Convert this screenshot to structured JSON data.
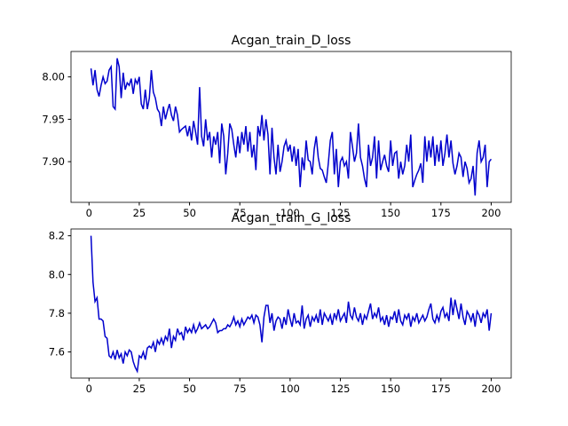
{
  "chart_data": [
    {
      "type": "line",
      "title": "Acgan_train_D_loss",
      "color": "#0000cd",
      "xlim": [
        -8.95,
        209.95
      ],
      "ylim": [
        7.852,
        8.03
      ],
      "xticks": [
        0,
        25,
        50,
        75,
        100,
        125,
        150,
        175,
        200
      ],
      "yticks": [
        {
          "value": 7.9,
          "label": "7.90"
        },
        7.95,
        {
          "value": 8.0,
          "label": "8.00"
        }
      ],
      "x": [
        1,
        2,
        3,
        4,
        5,
        6,
        7,
        8,
        9,
        10,
        11,
        12,
        13,
        14,
        15,
        16,
        17,
        18,
        19,
        20,
        21,
        22,
        23,
        24,
        25,
        26,
        27,
        28,
        29,
        30,
        31,
        32,
        33,
        34,
        35,
        36,
        37,
        38,
        39,
        40,
        41,
        42,
        43,
        44,
        45,
        46,
        47,
        48,
        49,
        50,
        51,
        52,
        53,
        54,
        55,
        56,
        57,
        58,
        59,
        60,
        61,
        62,
        63,
        64,
        65,
        66,
        67,
        68,
        69,
        70,
        71,
        72,
        73,
        74,
        75,
        76,
        77,
        78,
        79,
        80,
        81,
        82,
        83,
        84,
        85,
        86,
        87,
        88,
        89,
        90,
        91,
        92,
        93,
        94,
        95,
        96,
        97,
        98,
        99,
        100,
        101,
        102,
        103,
        104,
        105,
        106,
        107,
        108,
        109,
        110,
        111,
        112,
        113,
        114,
        115,
        116,
        117,
        118,
        119,
        120,
        121,
        122,
        123,
        124,
        125,
        126,
        127,
        128,
        129,
        130,
        131,
        132,
        133,
        134,
        135,
        136,
        137,
        138,
        139,
        140,
        141,
        142,
        143,
        144,
        145,
        146,
        147,
        148,
        149,
        150,
        151,
        152,
        153,
        154,
        155,
        156,
        157,
        158,
        159,
        160,
        161,
        162,
        163,
        164,
        165,
        166,
        167,
        168,
        169,
        170,
        171,
        172,
        173,
        174,
        175,
        176,
        177,
        178,
        179,
        180,
        181,
        182,
        183,
        184,
        185,
        186,
        187,
        188,
        189,
        190,
        191,
        192,
        193,
        194,
        195,
        196,
        197,
        198,
        199,
        200
      ],
      "values": [
        8.01,
        7.99,
        8.008,
        7.985,
        7.977,
        7.99,
        8.0,
        7.992,
        7.995,
        8.008,
        8.012,
        7.965,
        7.962,
        8.022,
        8.012,
        7.975,
        8.005,
        7.985,
        7.993,
        7.99,
        7.998,
        7.98,
        7.997,
        7.992,
        8.0,
        7.968,
        7.962,
        7.985,
        7.962,
        7.975,
        8.008,
        7.982,
        7.975,
        7.962,
        7.958,
        7.942,
        7.965,
        7.95,
        7.96,
        7.968,
        7.955,
        7.948,
        7.965,
        7.955,
        7.935,
        7.938,
        7.94,
        7.942,
        7.93,
        7.942,
        7.925,
        7.948,
        7.935,
        7.92,
        7.988,
        7.93,
        7.918,
        7.95,
        7.925,
        7.935,
        7.905,
        7.93,
        7.92,
        7.935,
        7.898,
        7.945,
        7.93,
        7.885,
        7.91,
        7.945,
        7.938,
        7.92,
        7.905,
        7.93,
        7.91,
        7.935,
        7.92,
        7.942,
        7.912,
        7.935,
        7.905,
        7.92,
        7.89,
        7.942,
        7.93,
        7.955,
        7.925,
        7.95,
        7.932,
        7.885,
        7.94,
        7.905,
        7.885,
        7.92,
        7.888,
        7.9,
        7.918,
        7.925,
        7.912,
        7.92,
        7.9,
        7.918,
        7.895,
        7.915,
        7.87,
        7.905,
        7.89,
        7.925,
        7.902,
        7.9,
        7.885,
        7.915,
        7.93,
        7.905,
        7.892,
        7.89,
        7.882,
        7.875,
        7.898,
        7.925,
        7.935,
        7.885,
        7.915,
        7.87,
        7.9,
        7.905,
        7.895,
        7.9,
        7.88,
        7.935,
        7.918,
        7.9,
        7.91,
        7.945,
        7.905,
        7.895,
        7.88,
        7.87,
        7.92,
        7.895,
        7.905,
        7.93,
        7.88,
        7.925,
        7.89,
        7.9,
        7.908,
        7.895,
        7.888,
        7.925,
        7.895,
        7.91,
        7.912,
        7.88,
        7.9,
        7.885,
        7.895,
        7.92,
        7.9,
        7.932,
        7.87,
        7.878,
        7.885,
        7.89,
        7.898,
        7.875,
        7.93,
        7.9,
        7.925,
        7.905,
        7.93,
        7.895,
        7.92,
        7.9,
        7.925,
        7.895,
        7.91,
        7.932,
        7.905,
        7.925,
        7.898,
        7.885,
        7.895,
        7.91,
        7.905,
        7.882,
        7.9,
        7.892,
        7.875,
        7.88,
        7.895,
        7.86,
        7.91,
        7.925,
        7.9,
        7.905,
        7.92,
        7.87,
        7.9,
        7.903
      ]
    },
    {
      "type": "line",
      "title": "Acgan_train_G_loss",
      "color": "#0000cd",
      "xlim": [
        -8.95,
        209.95
      ],
      "ylim": [
        7.465,
        8.235
      ],
      "xticks": [
        0,
        25,
        50,
        75,
        100,
        125,
        150,
        175,
        200
      ],
      "yticks": [
        7.6,
        7.8,
        {
          "value": 8.0,
          "label": "8.0"
        },
        8.2
      ],
      "x": [
        1,
        2,
        3,
        4,
        5,
        6,
        7,
        8,
        9,
        10,
        11,
        12,
        13,
        14,
        15,
        16,
        17,
        18,
        19,
        20,
        21,
        22,
        23,
        24,
        25,
        26,
        27,
        28,
        29,
        30,
        31,
        32,
        33,
        34,
        35,
        36,
        37,
        38,
        39,
        40,
        41,
        42,
        43,
        44,
        45,
        46,
        47,
        48,
        49,
        50,
        51,
        52,
        53,
        54,
        55,
        56,
        57,
        58,
        59,
        60,
        61,
        62,
        63,
        64,
        65,
        66,
        67,
        68,
        69,
        70,
        71,
        72,
        73,
        74,
        75,
        76,
        77,
        78,
        79,
        80,
        81,
        82,
        83,
        84,
        85,
        86,
        87,
        88,
        89,
        90,
        91,
        92,
        93,
        94,
        95,
        96,
        97,
        98,
        99,
        100,
        101,
        102,
        103,
        104,
        105,
        106,
        107,
        108,
        109,
        110,
        111,
        112,
        113,
        114,
        115,
        116,
        117,
        118,
        119,
        120,
        121,
        122,
        123,
        124,
        125,
        126,
        127,
        128,
        129,
        130,
        131,
        132,
        133,
        134,
        135,
        136,
        137,
        138,
        139,
        140,
        141,
        142,
        143,
        144,
        145,
        146,
        147,
        148,
        149,
        150,
        151,
        152,
        153,
        154,
        155,
        156,
        157,
        158,
        159,
        160,
        161,
        162,
        163,
        164,
        165,
        166,
        167,
        168,
        169,
        170,
        171,
        172,
        173,
        174,
        175,
        176,
        177,
        178,
        179,
        180,
        181,
        182,
        183,
        184,
        185,
        186,
        187,
        188,
        189,
        190,
        191,
        192,
        193,
        194,
        195,
        196,
        197,
        198,
        199,
        200
      ],
      "values": [
        8.2,
        7.96,
        7.86,
        7.88,
        7.77,
        7.77,
        7.76,
        7.68,
        7.67,
        7.58,
        7.57,
        7.6,
        7.56,
        7.61,
        7.57,
        7.59,
        7.54,
        7.6,
        7.58,
        7.61,
        7.6,
        7.55,
        7.52,
        7.5,
        7.58,
        7.57,
        7.6,
        7.56,
        7.62,
        7.63,
        7.62,
        7.65,
        7.6,
        7.66,
        7.64,
        7.67,
        7.64,
        7.68,
        7.66,
        7.72,
        7.62,
        7.68,
        7.66,
        7.72,
        7.69,
        7.7,
        7.66,
        7.73,
        7.7,
        7.72,
        7.7,
        7.74,
        7.7,
        7.72,
        7.75,
        7.72,
        7.73,
        7.74,
        7.72,
        7.73,
        7.75,
        7.77,
        7.75,
        7.7,
        7.71,
        7.71,
        7.72,
        7.72,
        7.74,
        7.73,
        7.75,
        7.78,
        7.74,
        7.76,
        7.73,
        7.77,
        7.74,
        7.76,
        7.78,
        7.77,
        7.79,
        7.75,
        7.79,
        7.78,
        7.74,
        7.65,
        7.78,
        7.84,
        7.84,
        7.75,
        7.8,
        7.71,
        7.76,
        7.78,
        7.77,
        7.72,
        7.78,
        7.74,
        7.82,
        7.77,
        7.73,
        7.8,
        7.75,
        7.76,
        7.74,
        7.84,
        7.72,
        7.77,
        7.79,
        7.73,
        7.78,
        7.76,
        7.79,
        7.75,
        7.82,
        7.74,
        7.8,
        7.78,
        7.76,
        7.79,
        7.74,
        7.8,
        7.77,
        7.82,
        7.76,
        7.78,
        7.8,
        7.75,
        7.86,
        7.79,
        7.77,
        7.83,
        7.78,
        7.76,
        7.8,
        7.74,
        7.79,
        7.77,
        7.81,
        7.85,
        7.77,
        7.8,
        7.78,
        7.83,
        7.76,
        7.78,
        7.74,
        7.79,
        7.73,
        7.78,
        7.77,
        7.81,
        7.75,
        7.82,
        7.76,
        7.74,
        7.79,
        7.77,
        7.8,
        7.73,
        7.78,
        7.76,
        7.8,
        7.75,
        7.77,
        7.79,
        7.76,
        7.78,
        7.82,
        7.85,
        7.77,
        7.75,
        7.79,
        7.76,
        7.81,
        7.83,
        7.78,
        7.8,
        7.76,
        7.88,
        7.79,
        7.87,
        7.82,
        7.77,
        7.85,
        7.78,
        7.74,
        7.81,
        7.79,
        7.76,
        7.8,
        7.73,
        7.81,
        7.79,
        7.75,
        7.8,
        7.78,
        7.82,
        7.71,
        7.8
      ]
    }
  ]
}
